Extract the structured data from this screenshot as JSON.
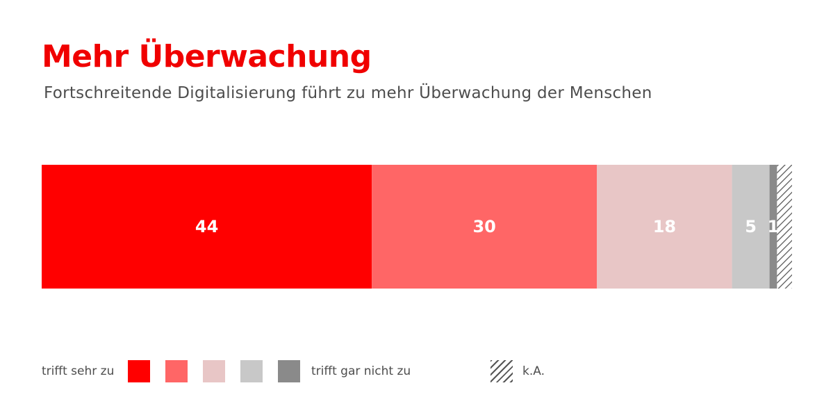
{
  "colors": {
    "title": "#f00000",
    "segments": [
      "#ff0000",
      "#ff6666",
      "#e8c6c6",
      "#c8c8c8",
      "#8a8a8a"
    ],
    "hatch": "#555555"
  },
  "chart_data": {
    "type": "bar",
    "orientation": "horizontal-stacked",
    "title": "Mehr Überwachung",
    "subtitle": "Fortschreitende Digitalisierung führt zu mehr Überwachung der Menschen",
    "categories": [
      ""
    ],
    "series": [
      {
        "name": "trifft sehr zu",
        "values": [
          44
        ],
        "label": "44"
      },
      {
        "values": [
          30
        ],
        "label": "30"
      },
      {
        "values": [
          18
        ],
        "label": "18"
      },
      {
        "values": [
          5
        ],
        "label": "5"
      },
      {
        "name": "trifft gar nicht zu",
        "values": [
          1
        ],
        "label": "1"
      },
      {
        "name": "k.A.",
        "values": [
          2
        ],
        "label": "",
        "pattern": "hatch"
      }
    ],
    "xlim": [
      0,
      100
    ],
    "grid": false,
    "legend": "bottom-left"
  },
  "legend": {
    "left_label": "trifft sehr zu",
    "right_label": "trifft gar nicht zu",
    "na_label": "k.A."
  }
}
